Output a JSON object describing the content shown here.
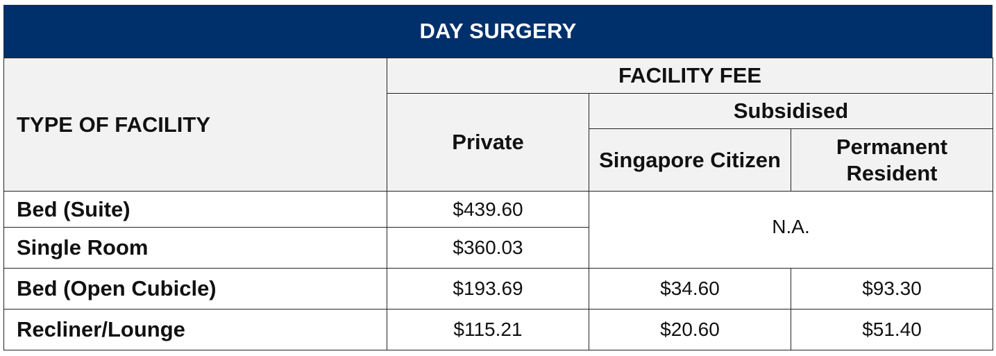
{
  "title": "DAY SURGERY",
  "header": {
    "type_of_facility": "TYPE OF FACILITY",
    "facility_fee": "FACILITY FEE",
    "private": "Private",
    "subsidised": "Subsidised",
    "singapore_citizen": "Singapore Citizen",
    "permanent_resident": "Permanent Resident"
  },
  "rows": [
    {
      "type": "Bed (Suite)",
      "private": "$439.60"
    },
    {
      "type": "Single Room",
      "private": "$360.03"
    },
    {
      "type": "Bed (Open Cubicle)",
      "private": "$193.69",
      "citizen": "$34.60",
      "resident": "$93.30"
    },
    {
      "type": "Recliner/Lounge",
      "private": "$115.21",
      "citizen": "$20.60",
      "resident": "$51.40"
    }
  ],
  "not_applicable": "N.A.",
  "colors": {
    "banner": "#00306b",
    "header_bg": "#f2f2f2"
  }
}
